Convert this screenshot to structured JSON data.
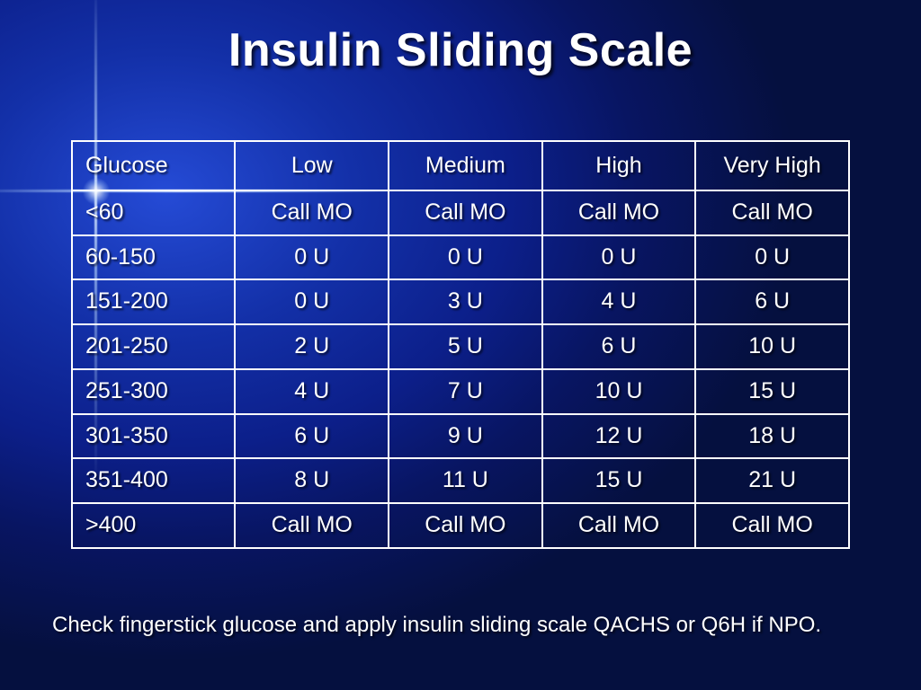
{
  "title": "Insulin Sliding Scale",
  "table": {
    "type": "table",
    "border_color": "#ffffff",
    "text_color": "#ffffff",
    "font_size_pt": 18,
    "header_font_weight": "normal",
    "columns": [
      "Glucose",
      "Low",
      "Medium",
      "High",
      "Very High"
    ],
    "column_align": [
      "left",
      "center",
      "center",
      "center",
      "center"
    ],
    "column_widths_pct": [
      21,
      19.75,
      19.75,
      19.75,
      19.75
    ],
    "rows": [
      [
        "<60",
        "Call MO",
        "Call MO",
        "Call MO",
        "Call MO"
      ],
      [
        "60-150",
        "0 U",
        "0 U",
        "0 U",
        "0 U"
      ],
      [
        "151-200",
        "0 U",
        "3 U",
        "4 U",
        "6 U"
      ],
      [
        "201-250",
        "2 U",
        "5 U",
        "6 U",
        "10 U"
      ],
      [
        "251-300",
        "4 U",
        "7 U",
        "10 U",
        "15 U"
      ],
      [
        "301-350",
        "6 U",
        "9 U",
        "12 U",
        "18 U"
      ],
      [
        "351-400",
        "8 U",
        "11 U",
        "15 U",
        "21 U"
      ],
      [
        ">400",
        "Call MO",
        "Call MO",
        "Call MO",
        "Call MO"
      ]
    ]
  },
  "footnote": "Check fingerstick glucose and apply insulin sliding scale QACHS or Q6H if NPO.",
  "style": {
    "background_gradient_center": "#254bd6",
    "background_gradient_edge": "#05103f",
    "title_color": "#ffffff",
    "title_fontsize_pt": 40,
    "title_font_weight": "bold",
    "text_shadow_color": "#000000",
    "flare_color": "#c3d7ff",
    "font_family": "Tahoma"
  }
}
